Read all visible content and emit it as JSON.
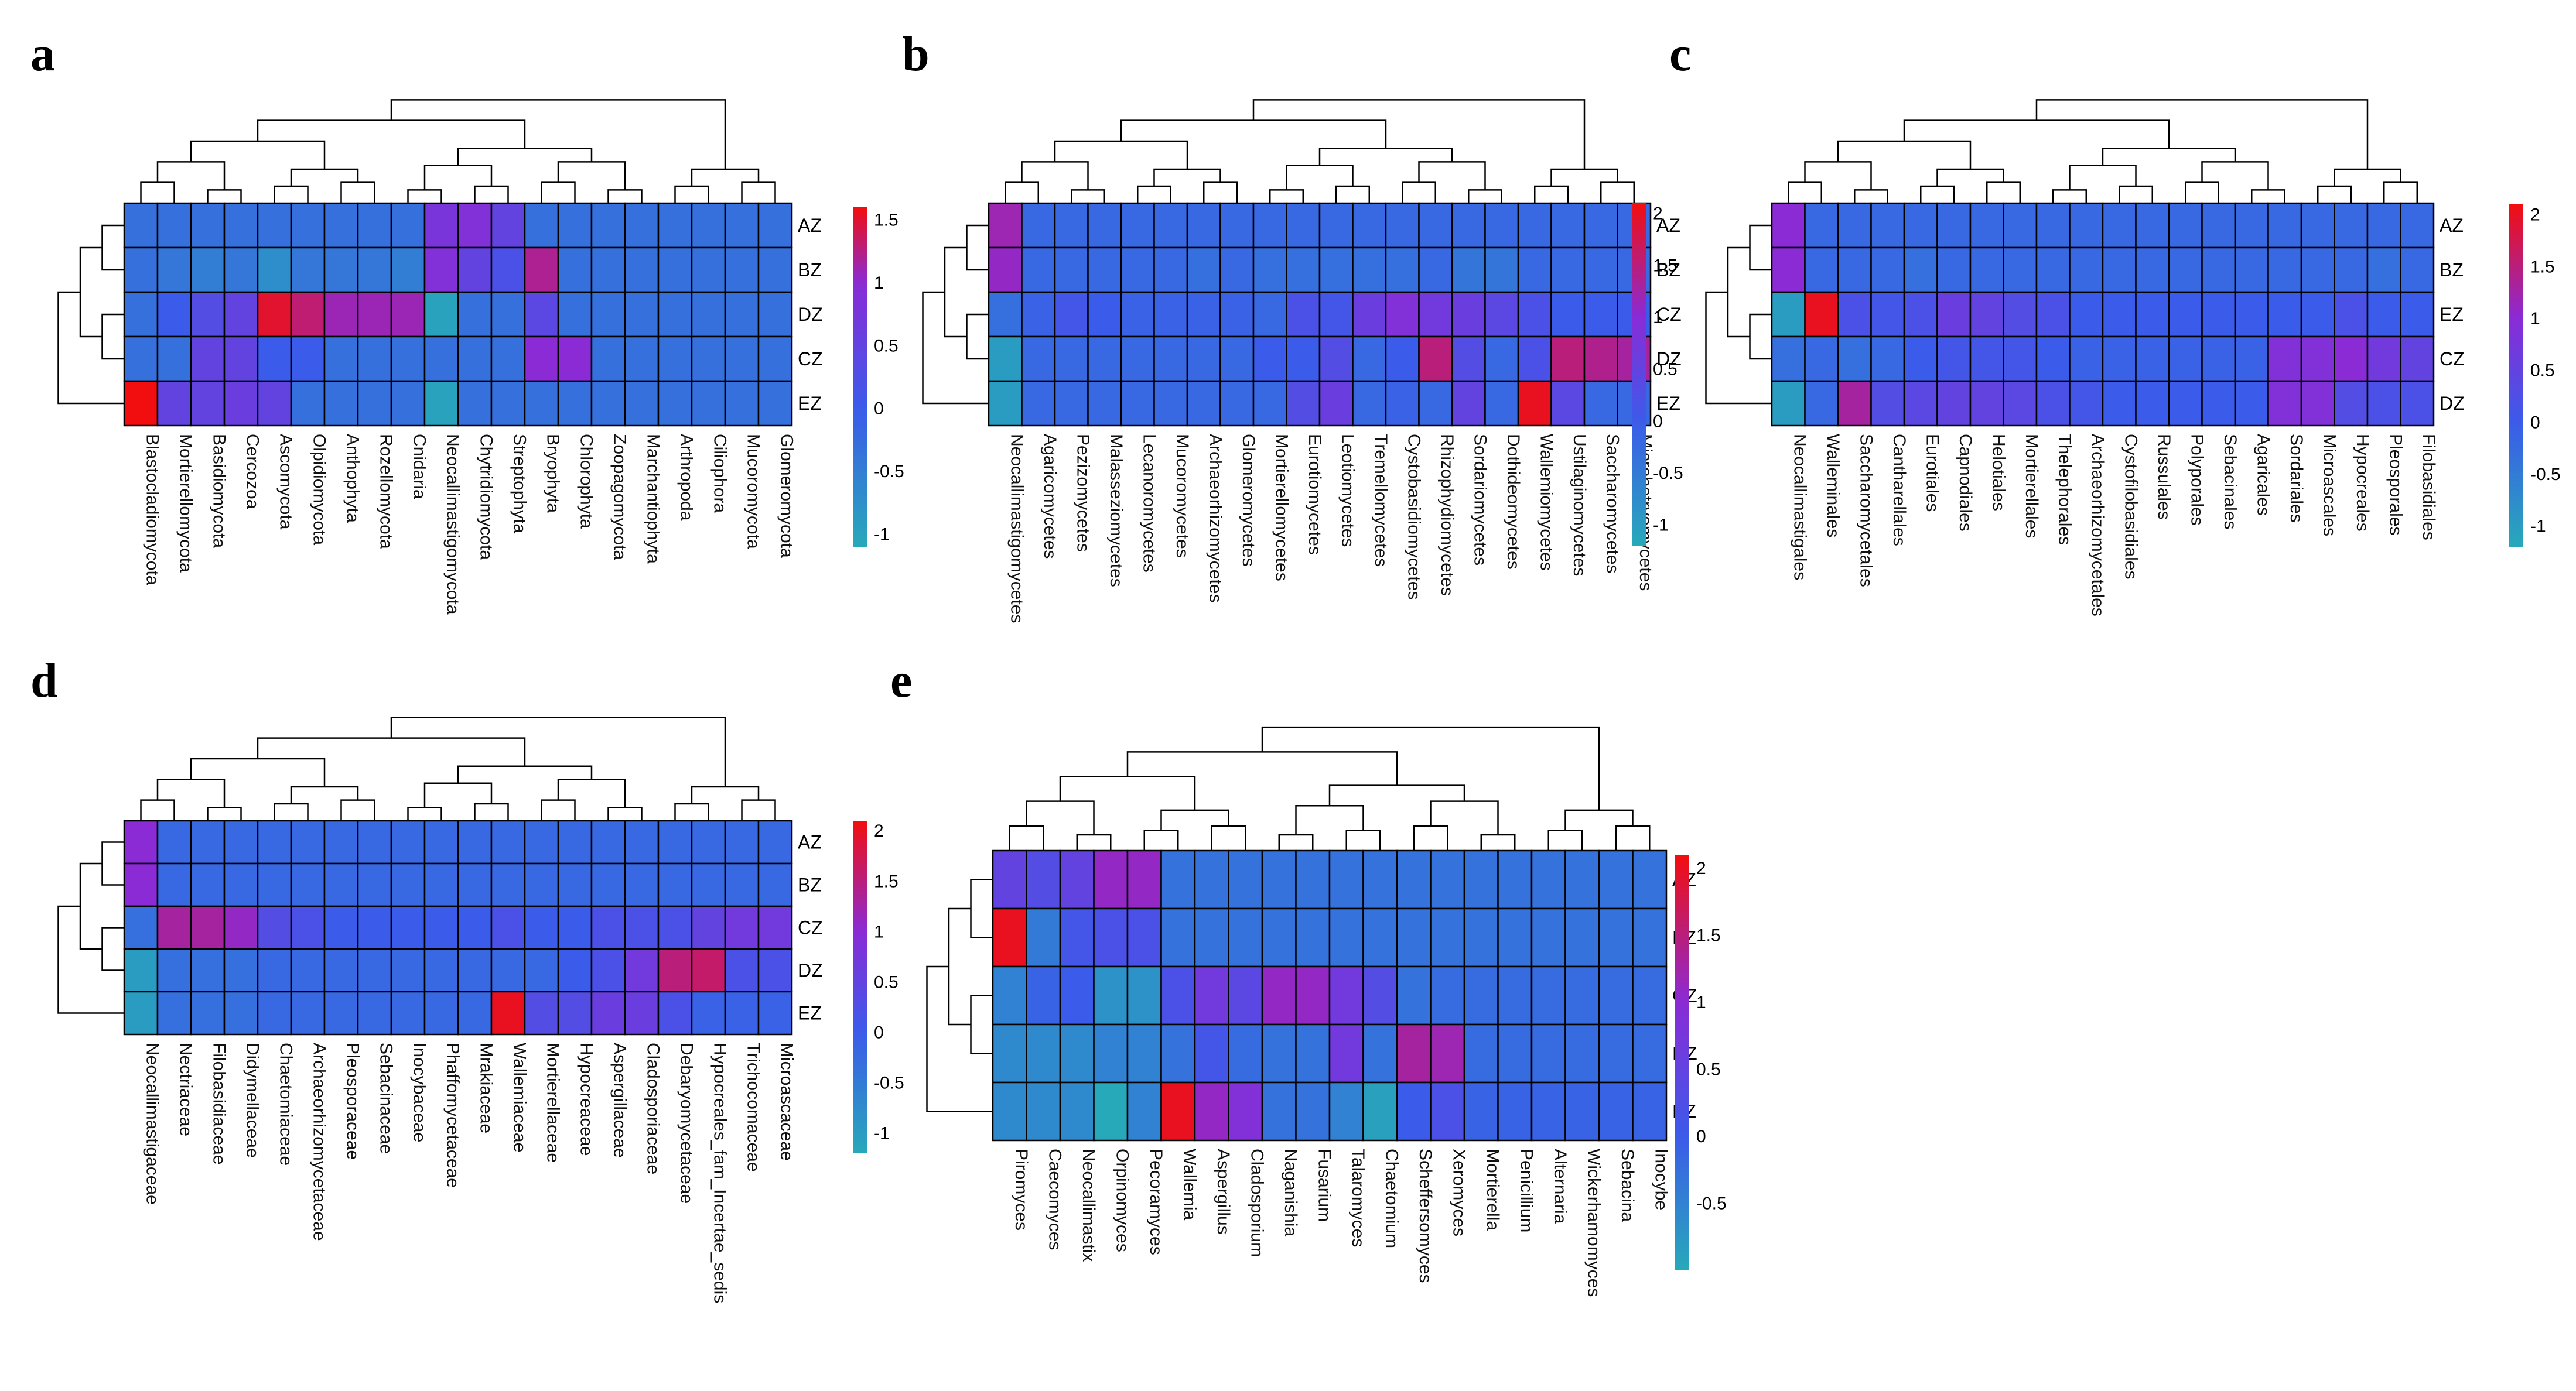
{
  "colors": {
    "low": "#27a9b9",
    "mid": "#3b5bea",
    "midhi": "#8a2bd6",
    "high": "#f20e0e",
    "cell_border": "#000000",
    "dendro": "#000000"
  },
  "chart_data": [
    {
      "type": "heatmap",
      "panel": "a",
      "rows": [
        "AZ",
        "BZ",
        "DZ",
        "CZ",
        "EZ"
      ],
      "columns": [
        "Blastocladiomycota",
        "Mortierellomycota",
        "Basidiomycota",
        "Cercozoa",
        "Ascomycota",
        "Olpidiomycota",
        "Anthophyta",
        "Rozellomycota",
        "Cnidaria",
        "Neocallimastigomycota",
        "Chytridiomycota",
        "Streptophyta",
        "Bryophyta",
        "Chlorophyta",
        "Zoopagomycota",
        "Marchantiophyta",
        "Arthropoda",
        "Ciliophora",
        "Mucoromycota",
        "Glomeromycota"
      ],
      "values": [
        [
          -0.3,
          -0.3,
          -0.3,
          -0.3,
          -0.3,
          -0.3,
          -0.3,
          -0.3,
          -0.3,
          0.8,
          0.9,
          0.5,
          -0.3,
          -0.3,
          -0.3,
          -0.3,
          -0.3,
          -0.3,
          -0.3,
          -0.3
        ],
        [
          -0.3,
          -0.4,
          -0.5,
          -0.4,
          -0.7,
          -0.4,
          -0.4,
          -0.4,
          -0.5,
          0.9,
          0.5,
          0.2,
          1.2,
          -0.3,
          -0.3,
          -0.3,
          -0.3,
          -0.3,
          -0.3,
          -0.3
        ],
        [
          -0.3,
          0.0,
          0.3,
          0.5,
          1.5,
          1.3,
          1.1,
          1.1,
          1.1,
          -1.0,
          -0.3,
          -0.3,
          0.4,
          -0.3,
          -0.3,
          -0.3,
          -0.3,
          -0.3,
          -0.3,
          -0.3
        ],
        [
          -0.3,
          -0.3,
          0.5,
          0.5,
          0.0,
          0.0,
          -0.3,
          -0.3,
          -0.3,
          -0.3,
          -0.3,
          -0.3,
          1.0,
          1.0,
          -0.3,
          -0.3,
          -0.3,
          -0.3,
          -0.3,
          -0.3
        ],
        [
          1.6,
          0.5,
          0.5,
          0.6,
          0.5,
          -0.3,
          -0.3,
          -0.3,
          -0.3,
          -1.0,
          -0.3,
          -0.3,
          -0.3,
          -0.3,
          -0.3,
          -0.3,
          -0.3,
          -0.3,
          -0.3,
          -0.3
        ]
      ],
      "scale": {
        "min": -1.1,
        "max": 1.6,
        "ticks": [
          -1,
          -0.5,
          0,
          0.5,
          1,
          1.5
        ]
      }
    },
    {
      "type": "heatmap",
      "panel": "b",
      "rows": [
        "AZ",
        "BZ",
        "CZ",
        "DZ",
        "EZ"
      ],
      "columns": [
        "Neocallimastigomycetes",
        "Agaricomycetes",
        "Pezizomycetes",
        "Malasseziomycetes",
        "Lecanoromycetes",
        "Mucoromycetes",
        "Archaeorhizomycetes",
        "Glomeromycetes",
        "Mortierellomycetes",
        "Eurotiomycetes",
        "Leotiomycetes",
        "Tremellomycetes",
        "Cystobasidiomycetes",
        "Rhizophydiomycetes",
        "Sordariomycetes",
        "Dothideomycetes",
        "Wallemiomycetes",
        "Ustilaginomycetes",
        "Saccharomycetes",
        "Microbotryomycetes"
      ],
      "values": [
        [
          1.2,
          -0.2,
          -0.2,
          -0.2,
          -0.2,
          -0.2,
          -0.2,
          -0.2,
          -0.2,
          -0.2,
          -0.2,
          -0.2,
          -0.2,
          -0.2,
          -0.2,
          -0.2,
          -0.2,
          -0.2,
          -0.2,
          -0.2
        ],
        [
          1.1,
          -0.2,
          -0.2,
          -0.2,
          -0.2,
          -0.2,
          -0.3,
          -0.2,
          -0.3,
          -0.3,
          -0.3,
          -0.3,
          -0.3,
          -0.2,
          -0.4,
          -0.4,
          -0.2,
          -0.2,
          -0.2,
          -0.2
        ],
        [
          -0.3,
          -0.1,
          0.1,
          0.0,
          -0.1,
          -0.1,
          -0.1,
          -0.1,
          -0.2,
          0.2,
          0.1,
          0.6,
          0.9,
          0.7,
          0.6,
          0.4,
          0.2,
          0.0,
          0.0,
          0.0
        ],
        [
          -1.0,
          -0.2,
          -0.2,
          -0.2,
          -0.2,
          -0.2,
          -0.2,
          -0.2,
          0.0,
          0.0,
          0.3,
          -0.2,
          0.0,
          1.5,
          0.3,
          -0.2,
          0.2,
          1.5,
          1.4,
          1.3
        ],
        [
          -1.0,
          -0.2,
          -0.2,
          -0.2,
          -0.2,
          -0.2,
          -0.2,
          -0.2,
          -0.2,
          0.3,
          0.6,
          -0.2,
          -0.1,
          -0.2,
          0.5,
          -0.2,
          2.0,
          0.4,
          -0.2,
          -0.2
        ]
      ],
      "scale": {
        "min": -1.2,
        "max": 2.1,
        "ticks": [
          -1,
          -0.5,
          0,
          0.5,
          1,
          1.5,
          2
        ]
      }
    },
    {
      "type": "heatmap",
      "panel": "c",
      "rows": [
        "AZ",
        "BZ",
        "EZ",
        "CZ",
        "DZ"
      ],
      "columns": [
        "Neocallimastigales",
        "Walleminales",
        "Saccharomycetales",
        "Cantharellales",
        "Eurotiales",
        "Capnodiales",
        "Helotiales",
        "Mortierellales",
        "Thelephorales",
        "Archaeorhizomycetales",
        "Cystofilobasidiales",
        "Russulales",
        "Polyporales",
        "Sebacinales",
        "Agaricales",
        "Sordariales",
        "Microascales",
        "Hypocreales",
        "Pleosporales",
        "Filobasidiales"
      ],
      "values": [
        [
          1.0,
          -0.2,
          -0.2,
          -0.2,
          -0.2,
          -0.2,
          -0.2,
          -0.2,
          -0.2,
          -0.2,
          -0.2,
          -0.2,
          -0.2,
          -0.2,
          -0.2,
          -0.2,
          -0.2,
          -0.2,
          -0.2,
          -0.2
        ],
        [
          1.0,
          -0.2,
          -0.2,
          -0.2,
          -0.3,
          -0.2,
          -0.2,
          -0.2,
          -0.2,
          -0.2,
          -0.2,
          -0.2,
          -0.2,
          -0.2,
          -0.2,
          -0.2,
          -0.2,
          -0.2,
          -0.3,
          -0.2
        ],
        [
          -1.0,
          2.0,
          0.2,
          0.1,
          0.2,
          0.6,
          0.5,
          0.3,
          0.2,
          0.0,
          0.0,
          0.0,
          0.0,
          0.0,
          0.0,
          0.0,
          0.0,
          0.2,
          0.0,
          0.0
        ],
        [
          -0.3,
          -0.2,
          -0.3,
          -0.2,
          0.0,
          0.1,
          0.1,
          0.1,
          0.0,
          -0.1,
          -0.1,
          -0.1,
          -0.1,
          -0.1,
          -0.1,
          0.9,
          0.9,
          1.0,
          0.7,
          0.5
        ],
        [
          -1.0,
          -0.2,
          1.3,
          0.3,
          0.4,
          0.5,
          0.5,
          0.4,
          0.2,
          0.1,
          0.0,
          0.0,
          0.0,
          0.0,
          0.0,
          0.9,
          0.9,
          0.3,
          0.2,
          0.2
        ]
      ],
      "scale": {
        "min": -1.2,
        "max": 2.1,
        "ticks": [
          -1,
          -0.5,
          0,
          0.5,
          1,
          1.5,
          2
        ]
      }
    },
    {
      "type": "heatmap",
      "panel": "d",
      "rows": [
        "AZ",
        "BZ",
        "CZ",
        "DZ",
        "EZ"
      ],
      "columns": [
        "Neocallimastigaceae",
        "Nectriaceae",
        "Filobasidiaceae",
        "Didymellaceae",
        "Chaetomiaceae",
        "Archaeorhizomycetaceae",
        "Pleosporaceae",
        "Sebacinaceae",
        "Inocybaceae",
        "Phaffomycetaceae",
        "Mrakiaceae",
        "Wallemiaceae",
        "Mortierellaceae",
        "Hypocreaceae",
        "Aspergillaceae",
        "Cladosporiaceae",
        "Debaryomycetaceae",
        "Hypocreales_fam_Incertae_sedis",
        "Trichocomaceae",
        "Microascaceae"
      ],
      "values": [
        [
          1.0,
          -0.2,
          -0.2,
          -0.2,
          -0.2,
          -0.2,
          -0.2,
          -0.2,
          -0.2,
          -0.2,
          -0.2,
          -0.2,
          -0.2,
          -0.2,
          -0.2,
          -0.2,
          -0.2,
          -0.2,
          -0.2,
          -0.2
        ],
        [
          1.0,
          -0.2,
          -0.2,
          -0.2,
          -0.2,
          -0.2,
          -0.2,
          -0.2,
          -0.2,
          -0.2,
          -0.2,
          -0.2,
          -0.2,
          -0.2,
          -0.2,
          -0.2,
          -0.2,
          -0.2,
          -0.2,
          -0.2
        ],
        [
          -0.3,
          1.3,
          1.3,
          1.1,
          0.3,
          0.2,
          0.0,
          0.0,
          0.0,
          0.0,
          0.0,
          0.2,
          0.0,
          0.0,
          0.2,
          0.2,
          0.2,
          0.5,
          0.7,
          0.7
        ],
        [
          -1.0,
          -0.3,
          -0.3,
          -0.3,
          -0.2,
          -0.2,
          -0.2,
          -0.2,
          -0.2,
          -0.2,
          -0.2,
          -0.2,
          -0.2,
          0.0,
          0.2,
          0.7,
          1.5,
          1.6,
          0.2,
          0.2
        ],
        [
          -1.0,
          -0.3,
          -0.3,
          -0.3,
          -0.2,
          -0.2,
          -0.2,
          -0.2,
          -0.2,
          -0.2,
          -0.2,
          2.0,
          0.3,
          0.3,
          0.6,
          0.6,
          0.2,
          -0.1,
          -0.1,
          -0.1
        ]
      ],
      "scale": {
        "min": -1.2,
        "max": 2.1,
        "ticks": [
          -1,
          -0.5,
          0,
          0.5,
          1,
          1.5,
          2
        ]
      }
    },
    {
      "type": "heatmap",
      "panel": "e",
      "rows": [
        "AZ",
        "BZ",
        "CZ",
        "DZ",
        "EZ"
      ],
      "columns": [
        "Piromyces",
        "Caecomyces",
        "Neocallimastix",
        "Orpinomyces",
        "Pecoramyces",
        "Wallemia",
        "Aspergillus",
        "Cladosporium",
        "Naganishia",
        "Fusarium",
        "Talaromyces",
        "Chaetomium",
        "Scheffersomyces",
        "Xeromyces",
        "Mortierella",
        "Penicillium",
        "Alternaria",
        "Wickerhamomyces",
        "Sebacina",
        "Inocybe"
      ],
      "values": [
        [
          0.5,
          0.3,
          0.5,
          1.1,
          1.1,
          -0.3,
          -0.3,
          -0.3,
          -0.3,
          -0.3,
          -0.3,
          -0.3,
          -0.3,
          -0.3,
          -0.3,
          -0.3,
          -0.3,
          -0.3,
          -0.3,
          -0.3
        ],
        [
          2.0,
          -0.4,
          0.1,
          0.2,
          0.2,
          -0.3,
          -0.3,
          -0.3,
          -0.3,
          -0.3,
          -0.3,
          -0.3,
          -0.3,
          -0.3,
          -0.3,
          -0.3,
          -0.3,
          -0.3,
          -0.3,
          -0.3
        ],
        [
          -0.5,
          -0.1,
          0.0,
          -0.7,
          -0.7,
          0.2,
          0.7,
          0.4,
          1.1,
          1.1,
          0.7,
          0.3,
          -0.3,
          -0.2,
          -0.2,
          -0.2,
          -0.2,
          -0.2,
          -0.2,
          -0.2
        ],
        [
          -0.6,
          -0.6,
          -0.6,
          -0.5,
          -0.5,
          -0.3,
          0.1,
          -0.2,
          -0.3,
          -0.3,
          0.7,
          -0.3,
          1.3,
          1.2,
          -0.2,
          -0.2,
          -0.2,
          -0.2,
          -0.2,
          -0.2
        ],
        [
          -0.6,
          -0.6,
          -0.6,
          -1.0,
          -0.5,
          2.0,
          1.1,
          0.9,
          -0.3,
          -0.3,
          -0.5,
          -0.9,
          0.0,
          0.2,
          -0.1,
          -0.1,
          -0.1,
          -0.1,
          -0.1,
          -0.1
        ]
      ],
      "scale": {
        "min": -1.0,
        "max": 2.1,
        "ticks": [
          -0.5,
          0,
          0.5,
          1,
          1.5,
          2
        ]
      }
    }
  ]
}
